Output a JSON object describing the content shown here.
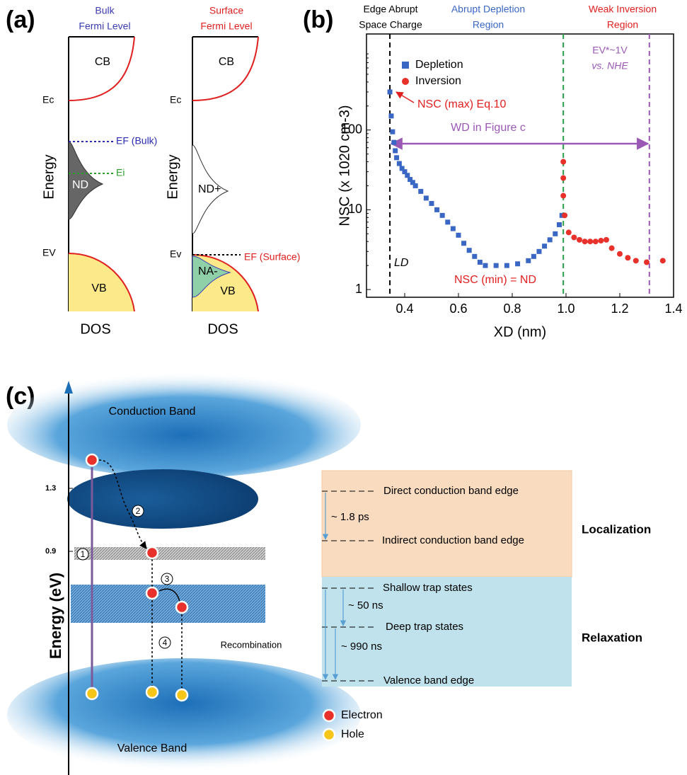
{
  "panel_a": {
    "label": "(a)",
    "left": {
      "title": [
        "Bulk",
        "Fermi Level"
      ],
      "cb": "CB",
      "vb": "VB",
      "ec": "Ec",
      "ev": "EV",
      "ef": "EF (Bulk)",
      "ei": "Ei",
      "nd": "ND",
      "ylabel": "Energy",
      "xlabel": "DOS"
    },
    "right": {
      "title": [
        "Surface",
        "Fermi Level"
      ],
      "cb": "CB",
      "vb": "VB",
      "ec": "Ec",
      "ev": "Ev",
      "ef": "EF (Surface)",
      "nd": "ND+",
      "na": "NA-",
      "ylabel": "Energy",
      "xlabel": "DOS"
    }
  },
  "chart_data": {
    "type": "scatter",
    "label": "(b)",
    "xlabel": "XD (nm)",
    "ylabel": "NSC (x 1020 cm-3)",
    "yscale": "log",
    "xlim": [
      0.258,
      1.4
    ],
    "ylim": [
      0.8,
      1600
    ],
    "xticks": [
      0.4,
      0.6,
      0.8,
      {
        "value": 1,
        "label": "1.0"
      },
      1.2,
      1.4
    ],
    "yticks": [
      1,
      10,
      100
    ],
    "legend": "upper left",
    "series": [
      {
        "name": "Depletion",
        "color": "#3a66c4",
        "marker": "square",
        "x": [
          0.345,
          0.35,
          0.355,
          0.36,
          0.365,
          0.37,
          0.38,
          0.39,
          0.4,
          0.41,
          0.42,
          0.43,
          0.44,
          0.46,
          0.48,
          0.5,
          0.52,
          0.54,
          0.56,
          0.58,
          0.6,
          0.62,
          0.64,
          0.66,
          0.68,
          0.7,
          0.74,
          0.78,
          0.82,
          0.86,
          0.88,
          0.9,
          0.92,
          0.94,
          0.96,
          0.975,
          0.985
        ],
        "values": [
          300,
          150,
          95,
          70,
          55,
          45,
          38,
          33,
          30,
          27,
          24,
          22,
          20,
          17,
          14,
          12,
          10,
          8.5,
          7,
          5.8,
          4.8,
          3.8,
          3.1,
          2.6,
          2.2,
          2,
          2,
          2,
          2.1,
          2.3,
          2.6,
          3,
          3.5,
          4.2,
          5,
          6.5,
          8.5
        ]
      },
      {
        "name": "Inversion",
        "color": "#e8312a",
        "marker": "circle",
        "x": [
          0.99,
          0.99,
          0.99,
          0.995,
          1.01,
          1.03,
          1.05,
          1.07,
          1.09,
          1.11,
          1.13,
          1.15,
          1.17,
          1.2,
          1.23,
          1.26,
          1.3,
          1.36
        ],
        "values": [
          40,
          25,
          15,
          8.5,
          5.2,
          4.5,
          4.2,
          4,
          4,
          4,
          4.1,
          4.2,
          3.3,
          2.8,
          2.5,
          2.3,
          2.2,
          2.3
        ]
      }
    ],
    "vlines": [
      {
        "x": 0.345,
        "color": "#000000"
      },
      {
        "x": 0.99,
        "color": "#2a9d4a"
      },
      {
        "x": 1.31,
        "color": "#9b59b6"
      }
    ],
    "annotations": [
      "Edge Abrupt",
      "Space Charge",
      "Abrupt Depletion",
      "Region",
      "Weak Inversion",
      "Region",
      "EV*~1V",
      "vs. NHE",
      "NSC (max) Eq.10",
      "WD in Figure c",
      "LD",
      "NSC (min) = ND"
    ]
  },
  "panel_c": {
    "label": "(c)",
    "ticks": [
      "1.3",
      "0.9"
    ],
    "ylabel": "Energy (eV)",
    "conduction": "Conduction Band",
    "valence": "Valence Band",
    "recombination": "Recombination",
    "steps": [
      "1",
      "2",
      "3",
      "4"
    ],
    "levels": [
      "Direct conduction band edge",
      "Indirect conduction band edge",
      "Shallow trap states",
      "Deep trap states",
      "Valence band edge"
    ],
    "times": [
      "~ 1.8 ps",
      "~ 50 ns",
      "~ 990 ns"
    ],
    "regions": [
      "Localization",
      "Relaxation"
    ],
    "legend": [
      "Electron",
      "Hole"
    ]
  }
}
